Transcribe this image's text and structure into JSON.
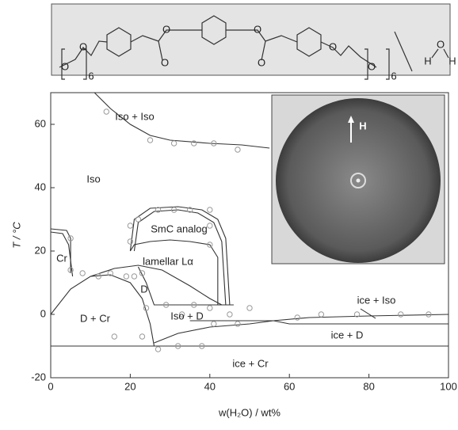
{
  "structure": {
    "atoms": [
      "O",
      "O",
      "O",
      "O",
      "O",
      "O",
      "O",
      "O",
      "6",
      "6",
      "H",
      "O",
      "H"
    ]
  },
  "chart_data": {
    "type": "scatter",
    "x_label": "w(H₂O) / wt%",
    "y_label": "T / °C",
    "xlim": [
      0,
      100
    ],
    "ylim": [
      -20,
      70
    ],
    "xticks": [
      0,
      20,
      40,
      60,
      80,
      100
    ],
    "yticks": [
      -20,
      0,
      20,
      40,
      60
    ],
    "point_color": "#9a9a9a",
    "line_color": "#333333",
    "x": [
      14,
      25,
      31,
      36,
      41,
      47,
      5,
      5,
      8,
      12,
      15,
      19,
      21,
      23,
      20,
      20,
      22,
      27,
      31,
      35,
      40,
      40,
      40,
      24,
      29,
      33,
      36,
      40,
      45,
      50,
      16,
      23,
      27,
      32,
      38,
      41,
      47,
      62,
      68,
      77,
      88,
      95
    ],
    "y": [
      64,
      55,
      54,
      54,
      54,
      52,
      24,
      14,
      13,
      12,
      13,
      12,
      12,
      13,
      28,
      23,
      30,
      33,
      33,
      33,
      33,
      28,
      22,
      2,
      3,
      0,
      3,
      2,
      0,
      2,
      -7,
      -7,
      -11,
      -10,
      -10,
      -3,
      -3,
      -1,
      0,
      0,
      0,
      0
    ],
    "boundaries": [
      {
        "x": [
          11,
          15,
          20,
          25,
          30,
          40,
          48,
          55
        ],
        "y": [
          70,
          65,
          60,
          56.5,
          55,
          54,
          53.5,
          52.5
        ]
      },
      {
        "x": [
          0,
          4,
          5,
          5
        ],
        "y": [
          27,
          26.5,
          24,
          13
        ]
      },
      {
        "x": [
          0,
          3,
          4.5,
          5.5
        ],
        "y": [
          26,
          25.5,
          22,
          12
        ]
      },
      {
        "x": [
          0,
          5,
          10,
          15,
          20,
          23,
          25,
          26
        ],
        "y": [
          0,
          8,
          12,
          12.5,
          10,
          5,
          -3,
          -10
        ]
      },
      {
        "x": [
          10,
          16,
          22,
          28,
          35,
          40,
          43
        ],
        "y": [
          12,
          14.5,
          15.5,
          14,
          9,
          5,
          3
        ]
      },
      {
        "x": [
          22,
          24,
          26,
          27
        ],
        "y": [
          15,
          10,
          3,
          3
        ]
      },
      {
        "x": [
          20,
          21,
          25,
          30,
          35,
          40,
          42,
          42
        ],
        "y": [
          20,
          22,
          23,
          23.5,
          23,
          22,
          18,
          3
        ]
      },
      {
        "x": [
          20,
          21,
          25,
          32,
          38,
          42,
          44,
          45
        ],
        "y": [
          20,
          30,
          33.5,
          34,
          33,
          30,
          24,
          3
        ]
      },
      {
        "x": [
          21,
          22,
          26,
          32,
          37,
          41,
          43,
          44
        ],
        "y": [
          20,
          29,
          32.5,
          33,
          32,
          29,
          23,
          3
        ]
      },
      {
        "x": [
          27,
          46
        ],
        "y": [
          3,
          3
        ]
      },
      {
        "x": [
          26,
          32,
          40,
          50,
          56,
          65,
          80,
          100
        ],
        "y": [
          -9,
          -6,
          -4,
          -3,
          -2,
          -1,
          -0.5,
          0
        ]
      },
      {
        "x": [
          35,
          45,
          56,
          60,
          70,
          100
        ],
        "y": [
          -2,
          -2,
          -2,
          -3,
          -3,
          -3
        ]
      },
      {
        "x": [
          0,
          100
        ],
        "y": [
          -10,
          -10
        ]
      }
    ],
    "annotations": [
      "Iso + Iso",
      "Iso",
      "Cr",
      "SmC analog",
      "lamellar Lα",
      "D",
      "D + Cr",
      "Iso + D",
      "ice + Iso",
      "ice + D",
      "ice + Cr"
    ],
    "inset_label": "H"
  }
}
